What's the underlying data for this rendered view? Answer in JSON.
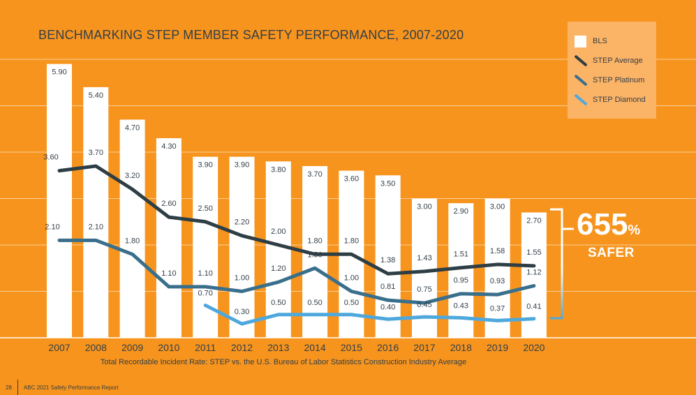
{
  "chart_data": {
    "type": "bar+line",
    "title": "BENCHMARKING STEP MEMBER SAFETY PERFORMANCE, 2007-2020",
    "subtitle": "Total Recordable Incident Rate: STEP vs. the U.S. Bureau of Labor Statistics Construction Industry Average",
    "categories": [
      "2007",
      "2008",
      "2009",
      "2010",
      "2011",
      "2012",
      "2013",
      "2014",
      "2015",
      "2016",
      "2017",
      "2018",
      "2019",
      "2020"
    ],
    "series": [
      {
        "name": "BLS",
        "kind": "bar",
        "color": "#FFFFFF",
        "values": [
          5.9,
          5.4,
          4.7,
          4.3,
          3.9,
          3.9,
          3.8,
          3.7,
          3.6,
          3.5,
          3.0,
          2.9,
          3.0,
          2.7
        ],
        "labels": [
          "5.90",
          "5.40",
          "4.70",
          "4.30",
          "3.90",
          "3.90",
          "3.80",
          "3.70",
          "3.60",
          "3.50",
          "3.00",
          "2.90",
          "3.00",
          "2.70"
        ]
      },
      {
        "name": "STEP Average",
        "kind": "line",
        "color": "#2E3E45",
        "values": [
          3.6,
          3.7,
          3.2,
          2.6,
          2.5,
          2.2,
          2.0,
          1.8,
          1.8,
          1.38,
          1.43,
          1.51,
          1.58,
          1.55
        ],
        "labels": [
          "3.60",
          "3.70",
          "3.20",
          "2.60",
          "2.50",
          "2.20",
          "2.00",
          "1.80",
          "1.80",
          "1.38",
          "1.43",
          "1.51",
          "1.58",
          "1.55"
        ]
      },
      {
        "name": "STEP Platinum",
        "kind": "line",
        "color": "#3A6F8C",
        "values": [
          2.1,
          2.1,
          1.8,
          1.1,
          1.1,
          1.0,
          1.2,
          1.5,
          1.0,
          0.81,
          0.75,
          0.95,
          0.93,
          1.12
        ],
        "labels": [
          "2.10",
          "2.10",
          "1.80",
          "1.10",
          "1.10",
          "1.00",
          "1.20",
          "1.50",
          "1.00",
          "0.81",
          "0.75",
          "0.95",
          "0.93",
          "1.12"
        ]
      },
      {
        "name": "STEP Diamond",
        "kind": "line",
        "color": "#4FA8DC",
        "values": [
          null,
          null,
          null,
          null,
          0.7,
          0.3,
          0.5,
          0.5,
          0.5,
          0.4,
          0.45,
          0.43,
          0.37,
          0.41
        ],
        "labels": [
          "",
          "",
          "",
          "",
          "0.70",
          "0.30",
          "0.50",
          "0.50",
          "0.50",
          "0.40",
          "0.45",
          "0.43",
          "0.37",
          "0.41"
        ]
      }
    ],
    "ylim": [
      0,
      6
    ],
    "grid": true,
    "legend_position": "top-right"
  },
  "callout": {
    "number": "655",
    "percent": "%",
    "word": "SAFER"
  },
  "footer": {
    "page": "28",
    "report": "ABC 2021 Safety Performance Report"
  },
  "colors": {
    "background": "#F7941D",
    "text": "#333F48",
    "legend_bg": "#FBB366"
  }
}
